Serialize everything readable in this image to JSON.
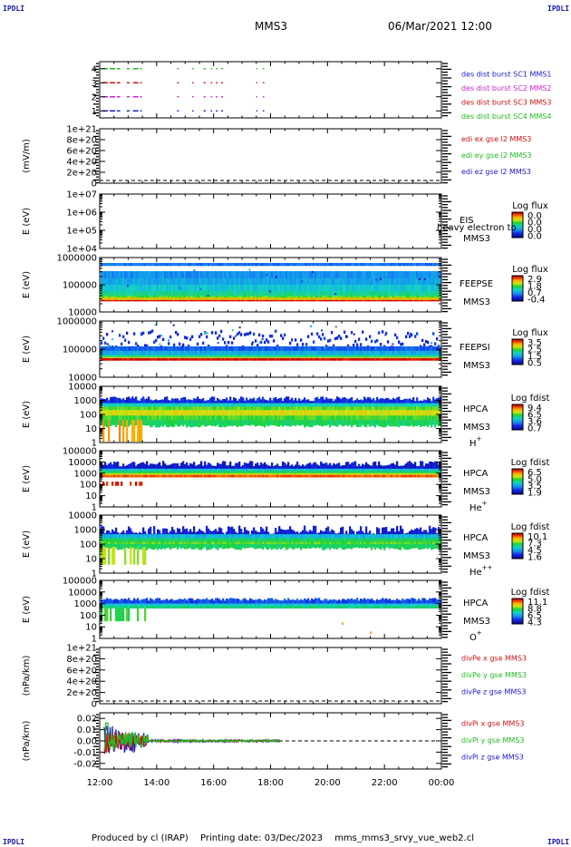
{
  "header": {
    "corner_label": "IPDLI",
    "mission": "MMS3",
    "datetime": "06/Mar/2021 12:00"
  },
  "footer": {
    "produced_by": "Produced by cl (IRAP)",
    "printing_date": "Printing date: 03/Dec/2023",
    "file": "mms_mms3_srvy_vue_web2.cl"
  },
  "chart_data": [
    {
      "id": "p0",
      "type": "line",
      "ylim": [
        0.5,
        4.5
      ],
      "yticks": [
        "1",
        "2",
        "3",
        "4"
      ],
      "yvals": [
        1,
        2,
        3,
        4
      ],
      "series": [
        {
          "name": "des dist burst SC1 MMS1",
          "color": "#1a1acc",
          "y": 1
        },
        {
          "name": "des dist burst SC2 MMS2",
          "color": "#cc22cc",
          "y": 2
        },
        {
          "name": "des dist burst SC3 MMS3",
          "color": "#cc1111",
          "y": 3
        },
        {
          "name": "des dist burst SC4 MMS4",
          "color": "#22bb22",
          "y": 4
        }
      ]
    },
    {
      "id": "p1",
      "type": "line",
      "ylabel": "(mV/m)",
      "yticks": [
        "1e+21",
        "8e+20",
        "6e+20",
        "4e+20",
        "2e+20",
        "0"
      ],
      "series": [
        {
          "name": "edi ex gse l2 MMS3",
          "color": "#cc1111"
        },
        {
          "name": "edi ey gse l2 MMS3",
          "color": "#22bb22"
        },
        {
          "name": "edi ez gse l2 MMS3",
          "color": "#1a1acc"
        }
      ]
    },
    {
      "id": "p2",
      "type": "heatmap",
      "ylabel": "E (eV)",
      "yticks": [
        "1e+07",
        "1e+06",
        "1e+05",
        "1e+04"
      ],
      "instrument": "EIS",
      "spacecraft": "MMS3",
      "overlay_text": "heavy electron to",
      "colorbar": {
        "title": "Log flux",
        "labels": [
          "0.0",
          "0.0",
          "0.0",
          "0.0"
        ]
      }
    },
    {
      "id": "p3",
      "type": "heatmap",
      "ylabel": "E (eV)",
      "yticks": [
        "1000000",
        "100000",
        "10000"
      ],
      "instrument": "FEEPSE",
      "spacecraft": "MMS3",
      "colorbar": {
        "title": "Log flux",
        "labels": [
          "2.9",
          "1.8",
          "0.7",
          "-0.4"
        ]
      }
    },
    {
      "id": "p4",
      "type": "heatmap",
      "ylabel": "E (eV)",
      "yticks": [
        "1000000",
        "100000",
        "10000"
      ],
      "instrument": "FEEPSI",
      "spacecraft": "MMS3",
      "colorbar": {
        "title": "Log flux",
        "labels": [
          "3.5",
          "2.5",
          "1.5",
          "0.5"
        ]
      }
    },
    {
      "id": "p5",
      "type": "heatmap",
      "ylabel": "E (eV)",
      "yticks": [
        "10000",
        "1000",
        "100",
        "10",
        "1"
      ],
      "instrument": "HPCA",
      "spacecraft": "MMS3",
      "species": "H",
      "charge": "+",
      "colorbar": {
        "title": "Log fdist",
        "labels": [
          "9.4",
          "6.5",
          "3.6",
          "0.7"
        ]
      }
    },
    {
      "id": "p6",
      "type": "heatmap",
      "ylabel": "E (eV)",
      "yticks": [
        "100000",
        "10000",
        "1000",
        "100",
        "10",
        "1"
      ],
      "instrument": "HPCA",
      "spacecraft": "MMS3",
      "species": "He",
      "charge": "+",
      "colorbar": {
        "title": "Log fdist",
        "labels": [
          "6.5",
          "5.0",
          "3.5",
          "1.9"
        ]
      }
    },
    {
      "id": "p7",
      "type": "heatmap",
      "ylabel": "E (eV)",
      "yticks": [
        "10000",
        "1000",
        "100",
        "10",
        "1"
      ],
      "instrument": "HPCA",
      "spacecraft": "MMS3",
      "species": "He",
      "charge": "++",
      "colorbar": {
        "title": "Log fdist",
        "labels": [
          "10.1",
          "7.3",
          "4.5",
          "1.6"
        ]
      }
    },
    {
      "id": "p8",
      "type": "heatmap",
      "ylabel": "E (eV)",
      "yticks": [
        "100000",
        "10000",
        "1000",
        "100",
        "10",
        "1"
      ],
      "instrument": "HPCA",
      "spacecraft": "MMS3",
      "species": "O",
      "charge": "+",
      "colorbar": {
        "title": "Log fdist",
        "labels": [
          "11.1",
          "8.8",
          "6.5",
          "4.3"
        ]
      }
    },
    {
      "id": "p9",
      "type": "line",
      "ylabel": "(nPa/km)",
      "yticks": [
        "1e+21",
        "8e+20",
        "6e+20",
        "4e+20",
        "2e+20",
        "0"
      ],
      "series": [
        {
          "name": "divPe x gse MMS3",
          "color": "#cc1111"
        },
        {
          "name": "divPe y gse MMS3",
          "color": "#22bb22"
        },
        {
          "name": "divPe z gse MMS3",
          "color": "#1a1acc"
        }
      ]
    },
    {
      "id": "p10",
      "type": "line",
      "ylabel": "(nPa/km)",
      "ylim": [
        -0.025,
        0.025
      ],
      "yticks": [
        "0.02",
        "0.01",
        "0.00",
        "-0.01",
        "-0.02"
      ],
      "yvals": [
        0.02,
        0.01,
        0.0,
        -0.01,
        -0.02
      ],
      "series": [
        {
          "name": "divPi x gse MMS3",
          "color": "#cc1111"
        },
        {
          "name": "divPi y gse MMS3",
          "color": "#22bb22"
        },
        {
          "name": "divPi z gse MMS3",
          "color": "#1a1acc"
        }
      ]
    }
  ],
  "time_axis": {
    "ticks": [
      "12:00",
      "14:00",
      "16:00",
      "18:00",
      "20:00",
      "22:00",
      "00:00"
    ],
    "hours": [
      12,
      14,
      16,
      18,
      20,
      22,
      24
    ],
    "range": [
      12,
      24
    ]
  }
}
